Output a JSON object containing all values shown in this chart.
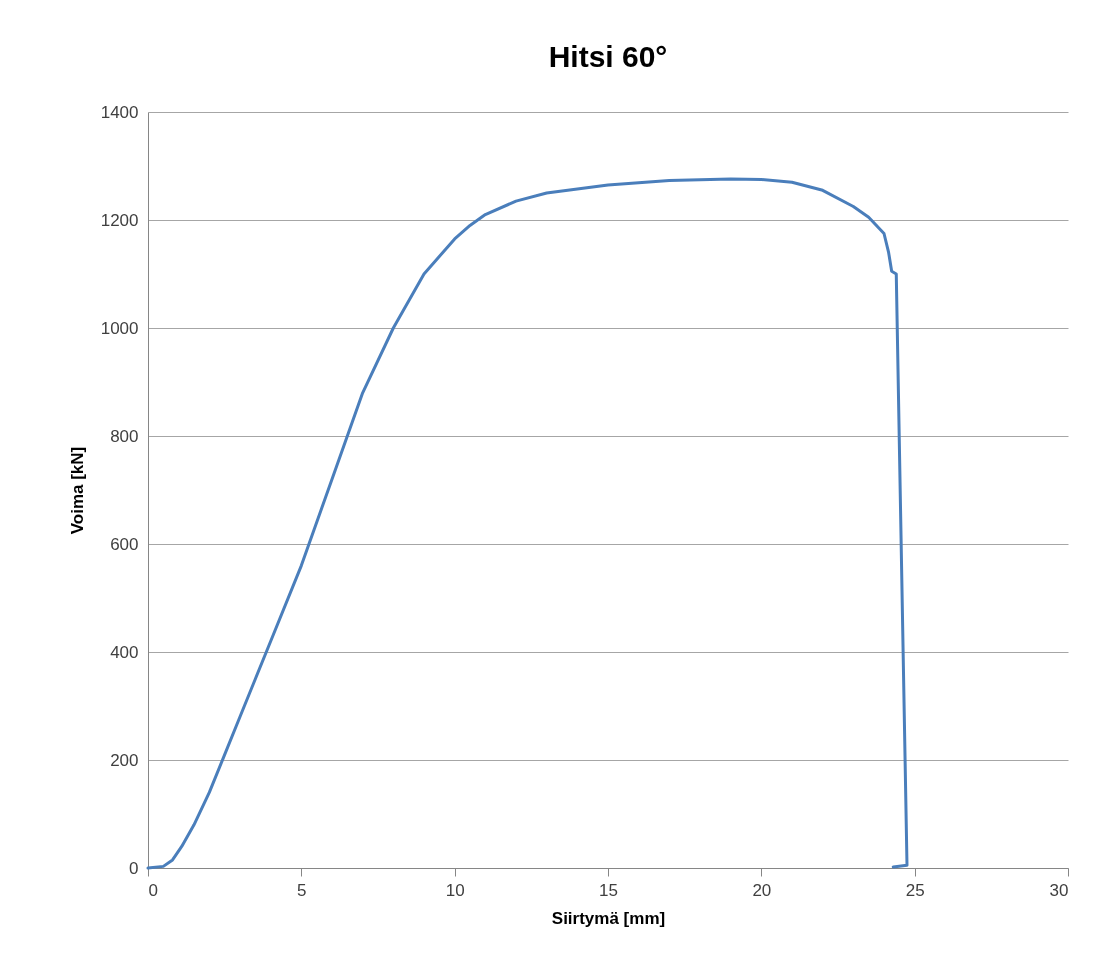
{
  "chart_data": {
    "type": "line",
    "title": "Hitsi 60°",
    "xlabel": "Siirtymä [mm]",
    "ylabel": "Voima [kN]",
    "xlim": [
      0,
      30
    ],
    "xticks": [
      0,
      5,
      10,
      15,
      20,
      25,
      30
    ],
    "ylim": [
      0,
      1400
    ],
    "yticks": [
      0,
      200,
      400,
      600,
      800,
      1000,
      1200,
      1400
    ],
    "grid": "y",
    "marker": "none",
    "line_style": "solid",
    "series": [
      {
        "color": "#4a7ebb",
        "x": [
          0,
          0.5,
          0.8,
          1.1,
          1.5,
          2,
          2.5,
          3,
          3.5,
          4,
          5,
          6,
          7,
          8,
          9,
          10,
          10.5,
          11,
          12,
          13,
          15,
          17,
          19,
          20,
          21,
          22,
          23,
          23.5,
          24,
          24.15,
          24.25,
          24.4,
          24.75,
          24.3
        ],
        "values": [
          0,
          3,
          15,
          40,
          80,
          140,
          210,
          280,
          350,
          420,
          560,
          720,
          880,
          1000,
          1100,
          1165,
          1190,
          1210,
          1235,
          1250,
          1265,
          1273,
          1276,
          1275,
          1270,
          1255,
          1225,
          1205,
          1175,
          1140,
          1105,
          1100,
          5,
          2
        ]
      }
    ]
  }
}
